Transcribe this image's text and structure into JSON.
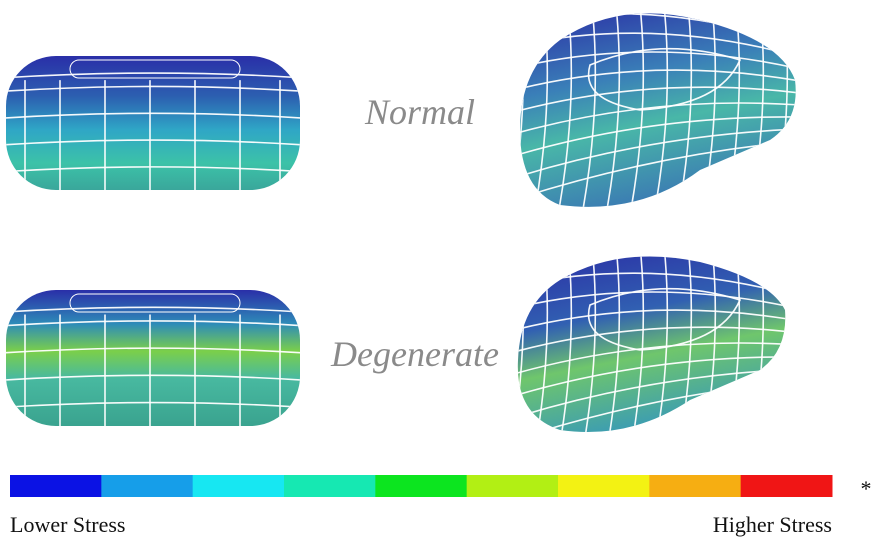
{
  "labels": {
    "normal": "Normal",
    "degenerate": "Degenerate"
  },
  "colorbar": {
    "colors": [
      "#0b12e4",
      "#169ee9",
      "#17e7f2",
      "#16e8b2",
      "#0ce51f",
      "#b2ef14",
      "#f3f213",
      "#f6ae12",
      "#f01515"
    ],
    "low_label": "Lower Stress",
    "high_label": "Higher Stress",
    "marker": "*"
  }
}
